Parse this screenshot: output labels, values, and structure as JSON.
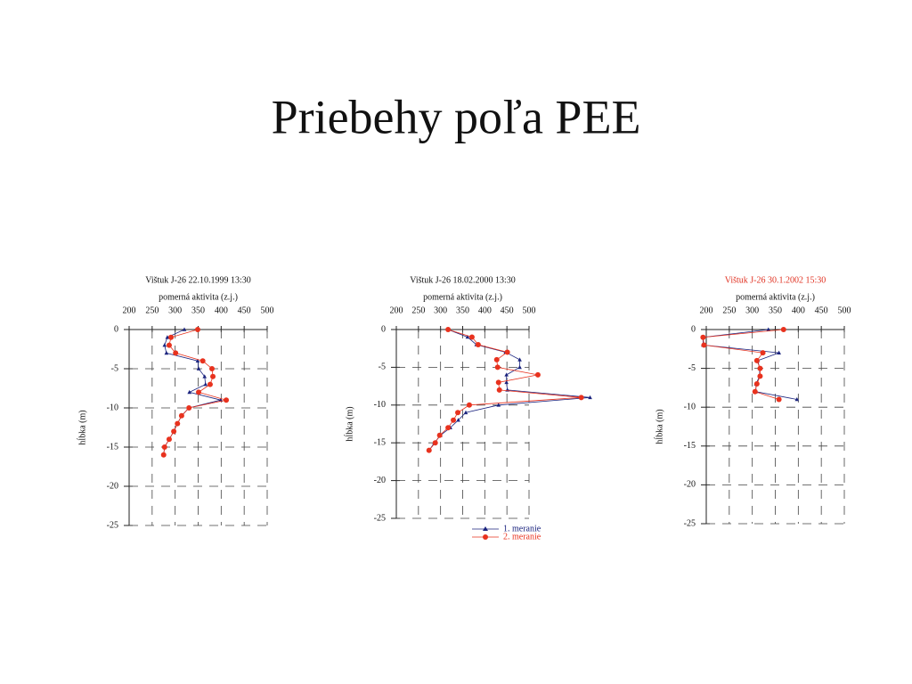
{
  "title": "Priebehy poľa PEE",
  "chart_data": [
    {
      "type": "line",
      "title": "Vištuk  J-26  22.10.1999  13:30",
      "title_color": "#111111",
      "x_label": "pomerná aktivita (z.j.)",
      "y_label": "hĺbka (m)",
      "xlim": [
        200,
        500
      ],
      "ylim": [
        -25,
        0
      ],
      "xticks": [
        200,
        250,
        300,
        350,
        400,
        450,
        500
      ],
      "yticks": [
        0,
        -5,
        -10,
        -15,
        -20,
        -25
      ],
      "grid": true,
      "y": [
        0,
        -1,
        -2,
        -3,
        -4,
        -5,
        -6,
        -7,
        -8,
        -9,
        -10,
        -11,
        -12,
        -13,
        -14,
        -15,
        -16
      ],
      "series": [
        {
          "color": "#1a237e",
          "marker": "triangle",
          "values": [
            320,
            283,
            277,
            281,
            349,
            351,
            364,
            366,
            331,
            399,
            330,
            314,
            305,
            297,
            287,
            277,
            275
          ]
        },
        {
          "color": "#e8321e",
          "marker": "circle",
          "values": [
            349,
            291,
            287,
            301,
            360,
            380,
            382,
            376,
            351,
            411,
            330,
            314,
            305,
            297,
            287,
            277,
            275
          ]
        }
      ]
    },
    {
      "type": "line",
      "title": "Vištuk  J-26  18.02.2000  13:30",
      "title_color": "#111111",
      "x_label": "pomerná aktivita (z.j.)",
      "y_label": "hĺbka (m)",
      "xlim": [
        200,
        500
      ],
      "ylim": [
        -25,
        0
      ],
      "xticks": [
        200,
        250,
        300,
        350,
        400,
        450,
        500
      ],
      "yticks": [
        0,
        -5,
        -10,
        -15,
        -20,
        -25
      ],
      "grid": true,
      "y": [
        0,
        -1,
        -2,
        -3,
        -4,
        -5,
        -6,
        -7,
        -8,
        -9,
        -10,
        -11,
        -12,
        -13,
        -14,
        -15,
        -16
      ],
      "series": [
        {
          "name": "1. meranie",
          "color": "#1a237e",
          "marker": "triangle",
          "values": [
            317,
            361,
            381,
            447,
            479,
            479,
            449,
            449,
            451,
            638,
            431,
            357,
            340,
            322,
            300,
            286,
            274
          ]
        },
        {
          "name": "2. meranie",
          "color": "#e8321e",
          "marker": "circle",
          "values": [
            317,
            371,
            385,
            451,
            427,
            429,
            520,
            431,
            433,
            618,
            365,
            339,
            329,
            317,
            298,
            288,
            274
          ]
        }
      ]
    },
    {
      "type": "line",
      "title": "Vištuk  J-26  30.1.2002  15:30",
      "title_color": "#e03020",
      "x_label": "pomerná aktivita (z.j.)",
      "y_label": "hĺbka (m)",
      "xlim": [
        200,
        500
      ],
      "ylim": [
        -25,
        0
      ],
      "xticks": [
        200,
        250,
        300,
        350,
        400,
        450,
        500
      ],
      "yticks": [
        0,
        -5,
        -10,
        -15,
        -20,
        -25
      ],
      "grid": true,
      "y": [
        0,
        -1,
        -2,
        -3,
        -4,
        -5,
        -6,
        -7,
        -8,
        -9
      ],
      "series": [
        {
          "color": "#1a237e",
          "marker": "triangle",
          "values": [
            335,
            193,
            193,
            358,
            312,
            316,
            316,
            308,
            308,
            397
          ]
        },
        {
          "color": "#e8321e",
          "marker": "circle",
          "values": [
            368,
            193,
            195,
            323,
            310,
            317,
            317,
            310,
            306,
            358
          ]
        }
      ]
    }
  ]
}
